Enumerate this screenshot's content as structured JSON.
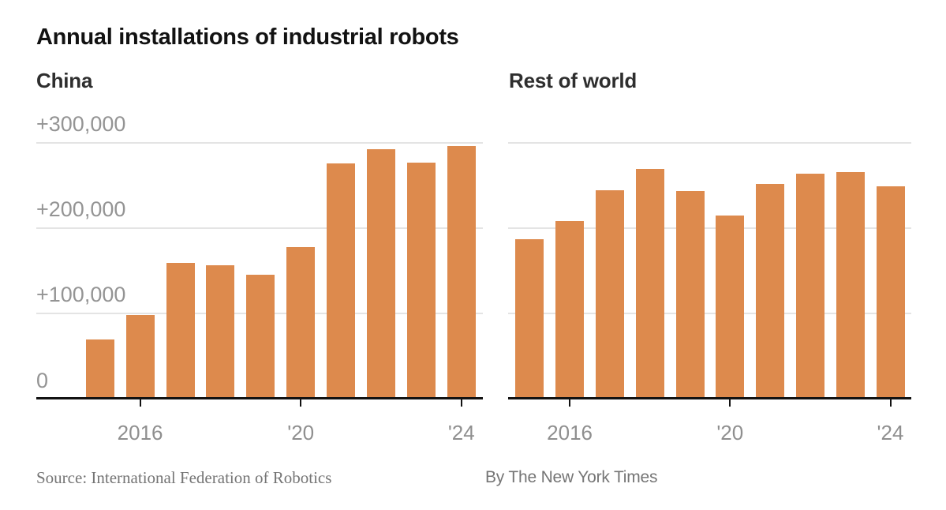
{
  "title": "Annual installations of industrial robots",
  "source": {
    "source_label": "Source: International Federation of Robotics",
    "byline": "By The New York Times"
  },
  "colors": {
    "background": "#ffffff",
    "bar": "#dd8a4d",
    "axis": "#121212",
    "gridline": "#e4e4e4",
    "title": "#121212",
    "panel_label": "#2e2e2e",
    "axis_label": "#949494",
    "tick_label": "#8f8f8f",
    "source_text": "#757575"
  },
  "y_axis": {
    "ticks": [
      {
        "value": 300000,
        "label": "+300,000"
      },
      {
        "value": 200000,
        "label": "+200,000"
      },
      {
        "value": 100000,
        "label": "+100,000"
      },
      {
        "value": 0,
        "label": "0"
      }
    ]
  },
  "x_axis": {
    "ticks": [
      {
        "year": 2016,
        "label": "2016"
      },
      {
        "year": 2020,
        "label": "'20"
      },
      {
        "year": 2024,
        "label": "'24"
      }
    ]
  },
  "chart_data": [
    {
      "type": "bar",
      "panel": "China",
      "title": "Annual installations of industrial robots — China",
      "categories": [
        2015,
        2016,
        2017,
        2018,
        2019,
        2020,
        2021,
        2022,
        2023,
        2024
      ],
      "values": [
        69000,
        97000,
        158000,
        156000,
        145000,
        177000,
        275000,
        291000,
        276000,
        295000
      ],
      "xlabel": "",
      "ylabel": "",
      "ylim": [
        0,
        320000
      ],
      "grid": true,
      "legend": false
    },
    {
      "type": "bar",
      "panel": "Rest of world",
      "title": "Annual installations of industrial robots — Rest of world",
      "categories": [
        2015,
        2016,
        2017,
        2018,
        2019,
        2020,
        2021,
        2022,
        2023,
        2024
      ],
      "values": [
        186000,
        207000,
        243000,
        268000,
        242000,
        214000,
        251000,
        263000,
        265000,
        248000
      ],
      "xlabel": "",
      "ylabel": "",
      "ylim": [
        0,
        320000
      ],
      "grid": true,
      "legend": false
    }
  ]
}
